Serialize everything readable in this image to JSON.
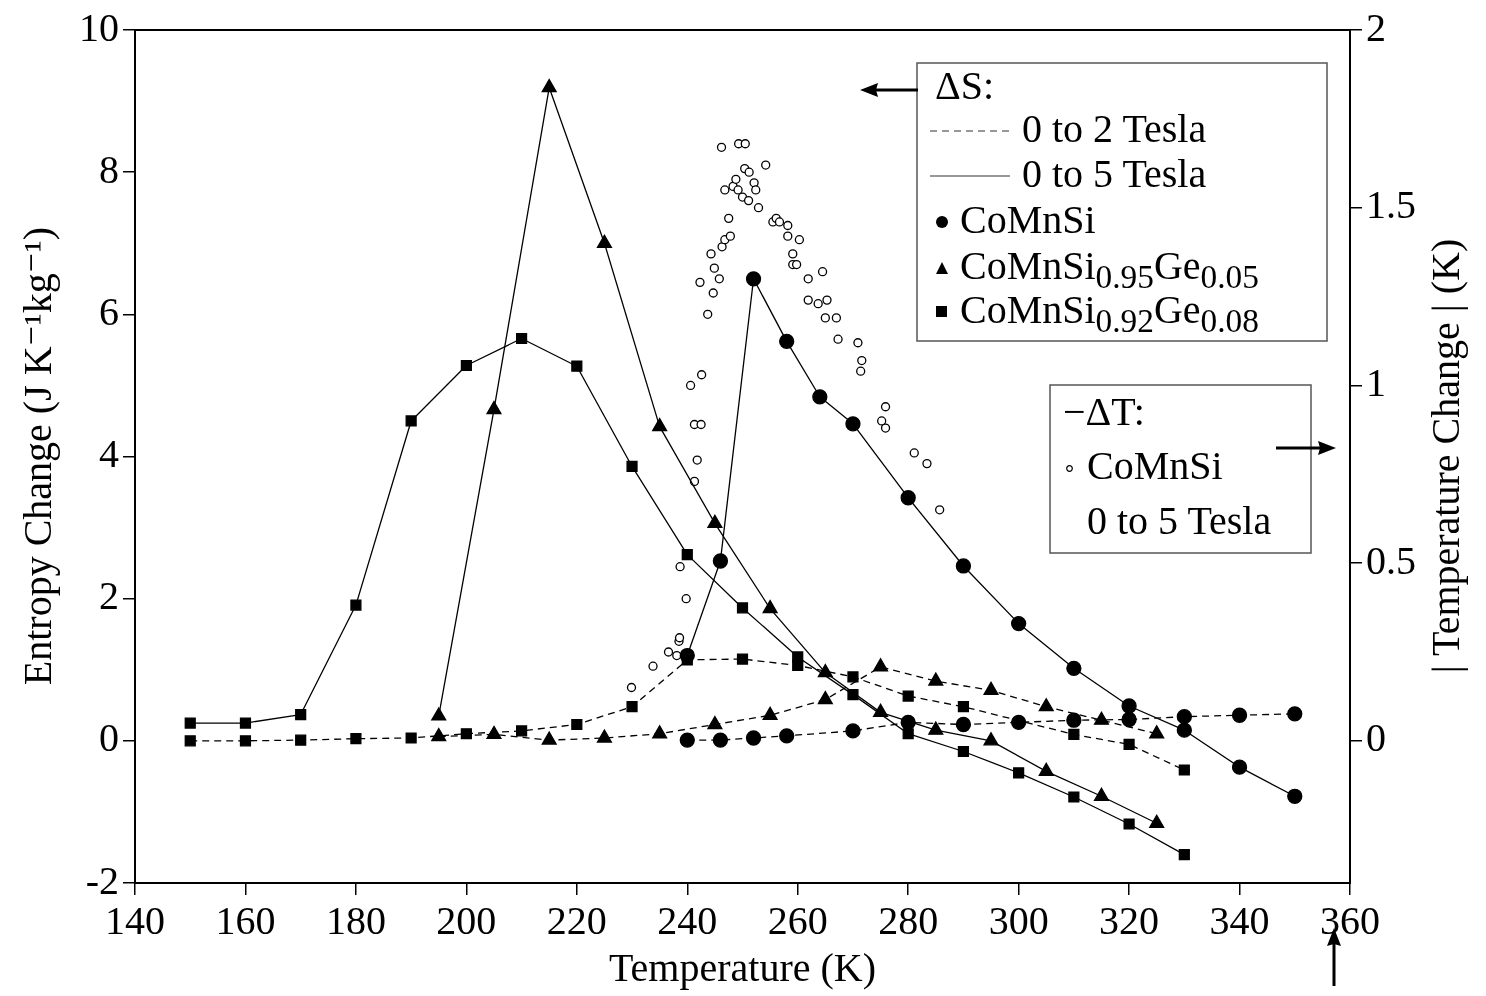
{
  "chart_data": {
    "type": "line",
    "xlabel": "Temperature (K)",
    "ylabel": "Entropy Change (J K⁻¹kg⁻¹)",
    "y2label": "| Temperature Change | (K)",
    "xlim": [
      140,
      360
    ],
    "xticks": [
      140,
      160,
      180,
      200,
      220,
      240,
      260,
      280,
      300,
      320,
      340,
      360
    ],
    "ylim": [
      -2,
      10
    ],
    "yticks": [
      -2,
      0,
      2,
      4,
      6,
      8,
      10
    ],
    "y2lim": [
      -0.4,
      2
    ],
    "y2ticks": [
      0,
      0.5,
      1,
      1.5,
      2
    ],
    "annotations": [
      "ΔS:",
      "0 to 2 Tesla",
      "0 to 5 Tesla",
      "CoMnSi",
      "CoMnSi$_{0.95}$Ge$_{0.05}$",
      "CoMnSi$_{0.92}$Ge$_{0.08}$",
      "−ΔT:",
      "CoMnSi",
      "0 to 5 Tesla"
    ],
    "series": [
      {
        "color": "#000000",
        "marker": "circle",
        "line_style": "dashed",
        "x": [
          240,
          246,
          252,
          258,
          270,
          280,
          290,
          300,
          310,
          320,
          330,
          340,
          350
        ],
        "values": [
          0.01,
          0.01,
          0.04,
          0.07,
          0.14,
          0.26,
          0.23,
          0.26,
          0.29,
          0.3,
          0.34,
          0.36,
          0.38
        ]
      },
      {
        "color": "#000000",
        "marker": "circle",
        "line_style": "solid",
        "x": [
          240,
          246,
          252,
          258,
          264,
          270,
          280,
          290,
          300,
          310,
          320,
          330,
          340,
          350
        ],
        "values": [
          1.2,
          2.53,
          6.5,
          5.62,
          4.84,
          4.46,
          3.42,
          2.46,
          1.65,
          1.02,
          0.49,
          0.15,
          -0.37,
          -0.78
        ]
      },
      {
        "color": "#000000",
        "marker": "triangle",
        "line_style": "dashed",
        "x": [
          195,
          205,
          215,
          225,
          235,
          245,
          255,
          265,
          275,
          285,
          295,
          305,
          315,
          325
        ],
        "values": [
          0.06,
          0.09,
          0.01,
          0.04,
          0.1,
          0.23,
          0.36,
          0.58,
          1.04,
          0.84,
          0.71,
          0.48,
          0.29,
          0.1
        ]
      },
      {
        "color": "#000000",
        "marker": "triangle",
        "line_style": "solid",
        "x": [
          195,
          205,
          215,
          225,
          235,
          245,
          255,
          265,
          275,
          285,
          295,
          305,
          315,
          325
        ],
        "values": [
          0.35,
          4.66,
          9.19,
          7.0,
          4.42,
          3.06,
          1.86,
          0.96,
          0.4,
          0.15,
          0.0,
          -0.43,
          -0.78,
          -1.16
        ]
      },
      {
        "color": "#000000",
        "marker": "square",
        "line_style": "dashed",
        "x": [
          150,
          160,
          170,
          180,
          190,
          200,
          210,
          220,
          230,
          240,
          250,
          260,
          270,
          280,
          290,
          310,
          320,
          330
        ],
        "values": [
          0.0,
          0.0,
          0.01,
          0.03,
          0.04,
          0.1,
          0.14,
          0.23,
          0.48,
          1.14,
          1.15,
          1.06,
          0.9,
          0.63,
          0.48,
          0.09,
          -0.05,
          -0.41
        ]
      },
      {
        "color": "#000000",
        "marker": "square",
        "line_style": "solid",
        "x": [
          150,
          160,
          170,
          180,
          190,
          200,
          210,
          220,
          230,
          240,
          250,
          260,
          270,
          280,
          290,
          300,
          310,
          320,
          330
        ],
        "values": [
          0.25,
          0.25,
          0.37,
          1.91,
          4.5,
          5.28,
          5.66,
          5.27,
          3.86,
          2.62,
          1.87,
          1.18,
          0.65,
          0.1,
          -0.15,
          -0.45,
          -0.79,
          -1.17,
          -1.6
        ]
      },
      {
        "type": "scatter",
        "axis": "y2",
        "color": "#000000",
        "marker": "circle",
        "x": [
          229.9,
          233.8,
          236.6,
          238.1,
          238.5,
          238.6,
          238.7,
          239.8,
          240.6,
          241.3,
          241.3,
          241.8,
          242.3,
          242.5,
          242.6,
          243.7,
          244.3,
          244.7,
          244.9,
          245.8,
          246.2,
          246.3,
          246.8,
          246.8,
          247.5,
          247.8,
          248.3,
          248.8,
          249.2,
          249.3,
          250.0,
          250.4,
          250.5,
          251.1,
          251.2,
          252.1,
          252.4,
          252.9,
          254.2,
          255.5,
          256.1,
          256.7,
          258.2,
          258.2,
          259.1,
          259.1,
          259.8,
          260.3,
          261.9,
          261.9,
          263.7,
          264.5,
          265.0,
          265.3,
          267.0,
          267.3,
          270.9,
          271.4,
          271.6,
          275.2,
          275.9,
          275.9,
          281.1,
          283.4,
          285.7
        ],
        "values": [
          0.15,
          0.21,
          0.25,
          0.24,
          0.28,
          0.29,
          0.49,
          0.4,
          1.0,
          0.89,
          0.73,
          0.79,
          1.29,
          0.89,
          1.03,
          1.2,
          1.37,
          1.26,
          1.33,
          1.3,
          1.67,
          1.39,
          1.55,
          1.41,
          1.47,
          1.42,
          1.56,
          1.58,
          1.55,
          1.68,
          1.53,
          1.61,
          1.68,
          1.52,
          1.6,
          1.57,
          1.55,
          1.5,
          1.62,
          1.46,
          1.47,
          1.46,
          1.45,
          1.42,
          1.37,
          1.34,
          1.34,
          1.41,
          1.3,
          1.24,
          1.23,
          1.32,
          1.19,
          1.24,
          1.19,
          1.13,
          1.12,
          1.04,
          1.07,
          0.9,
          0.94,
          0.88,
          0.81,
          0.78,
          0.65
        ]
      }
    ]
  }
}
